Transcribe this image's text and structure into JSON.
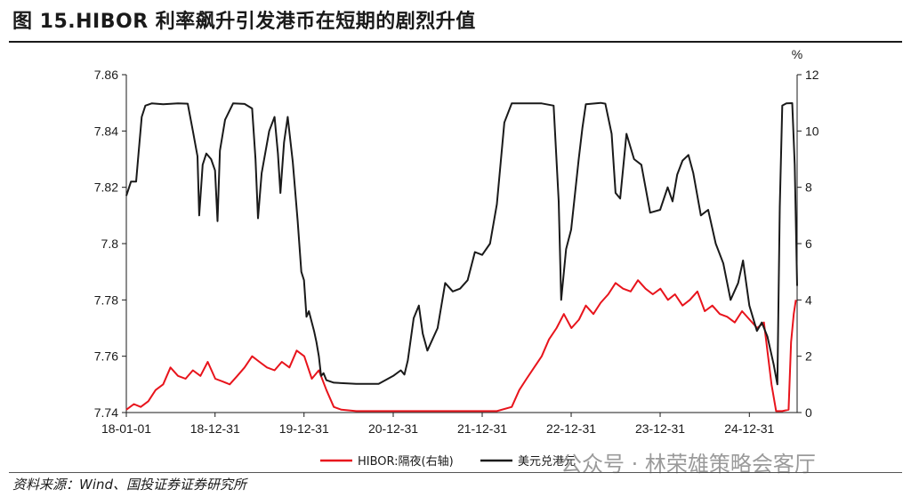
{
  "figure": {
    "title": "图 15.HIBOR 利率飙升引发港币在短期的剧烈升值",
    "source": "资料来源：Wind、国投证券证券研究所",
    "watermark": "公众号 · 林荣雄策略会客厅"
  },
  "colors": {
    "hibor": "#e8141c",
    "usdhkd": "#1a1a1a",
    "axis": "#1a1a1a"
  },
  "chart_data": {
    "type": "line",
    "title": "",
    "x_ticks": [
      "18-01-01",
      "18-12-31",
      "19-12-31",
      "20-12-31",
      "21-12-31",
      "22-12-31",
      "23-12-31",
      "24-12-31"
    ],
    "x_range": [
      "2018-01-01",
      "2025-07-15"
    ],
    "y_left": {
      "label": "",
      "ylim": [
        7.74,
        7.86
      ],
      "ticks": [
        "7.74",
        "7.76",
        "7.78",
        "7.8",
        "7.82",
        "7.84",
        "7.86"
      ]
    },
    "y_right": {
      "label": "%",
      "ylim": [
        0,
        12
      ],
      "ticks": [
        "0",
        "2",
        "4",
        "6",
        "8",
        "10",
        "12"
      ]
    },
    "grid": false,
    "legend": "bottom-center",
    "series": [
      {
        "name": "HIBOR:隔夜(右轴)",
        "axis": "right",
        "color": "#e8141c",
        "points": [
          [
            "2018-01-01",
            0.1
          ],
          [
            "2018-02-01",
            0.3
          ],
          [
            "2018-03-01",
            0.2
          ],
          [
            "2018-04-01",
            0.4
          ],
          [
            "2018-05-01",
            0.8
          ],
          [
            "2018-06-01",
            1.0
          ],
          [
            "2018-07-01",
            1.6
          ],
          [
            "2018-08-01",
            1.3
          ],
          [
            "2018-09-01",
            1.2
          ],
          [
            "2018-10-01",
            1.5
          ],
          [
            "2018-11-01",
            1.3
          ],
          [
            "2018-12-01",
            1.8
          ],
          [
            "2019-01-01",
            1.2
          ],
          [
            "2019-02-01",
            1.1
          ],
          [
            "2019-03-01",
            1.0
          ],
          [
            "2019-04-01",
            1.3
          ],
          [
            "2019-05-01",
            1.6
          ],
          [
            "2019-06-01",
            2.0
          ],
          [
            "2019-07-01",
            1.8
          ],
          [
            "2019-08-01",
            1.6
          ],
          [
            "2019-09-01",
            1.5
          ],
          [
            "2019-10-01",
            1.8
          ],
          [
            "2019-11-01",
            1.6
          ],
          [
            "2019-12-01",
            2.2
          ],
          [
            "2020-01-01",
            2.0
          ],
          [
            "2020-02-01",
            1.2
          ],
          [
            "2020-03-01",
            1.5
          ],
          [
            "2020-04-01",
            0.8
          ],
          [
            "2020-05-01",
            0.2
          ],
          [
            "2020-06-01",
            0.1
          ],
          [
            "2020-08-01",
            0.05
          ],
          [
            "2020-12-01",
            0.05
          ],
          [
            "2021-06-01",
            0.05
          ],
          [
            "2021-12-01",
            0.05
          ],
          [
            "2022-03-01",
            0.05
          ],
          [
            "2022-05-01",
            0.2
          ],
          [
            "2022-06-01",
            0.8
          ],
          [
            "2022-07-01",
            1.2
          ],
          [
            "2022-08-01",
            1.6
          ],
          [
            "2022-09-01",
            2.0
          ],
          [
            "2022-10-01",
            2.6
          ],
          [
            "2022-11-01",
            3.0
          ],
          [
            "2022-12-01",
            3.5
          ],
          [
            "2023-01-01",
            3.0
          ],
          [
            "2023-02-01",
            3.3
          ],
          [
            "2023-03-01",
            3.8
          ],
          [
            "2023-04-01",
            3.5
          ],
          [
            "2023-05-01",
            3.9
          ],
          [
            "2023-06-01",
            4.2
          ],
          [
            "2023-07-01",
            4.6
          ],
          [
            "2023-08-01",
            4.4
          ],
          [
            "2023-09-01",
            4.3
          ],
          [
            "2023-10-01",
            4.7
          ],
          [
            "2023-11-01",
            4.4
          ],
          [
            "2023-12-01",
            4.2
          ],
          [
            "2024-01-01",
            4.4
          ],
          [
            "2024-02-01",
            4.0
          ],
          [
            "2024-03-01",
            4.2
          ],
          [
            "2024-04-01",
            3.8
          ],
          [
            "2024-05-01",
            4.0
          ],
          [
            "2024-06-01",
            4.3
          ],
          [
            "2024-07-01",
            3.6
          ],
          [
            "2024-08-01",
            3.8
          ],
          [
            "2024-09-01",
            3.5
          ],
          [
            "2024-10-01",
            3.4
          ],
          [
            "2024-11-01",
            3.2
          ],
          [
            "2024-12-01",
            3.6
          ],
          [
            "2025-01-01",
            3.3
          ],
          [
            "2025-02-01",
            3.0
          ],
          [
            "2025-03-01",
            3.2
          ],
          [
            "2025-04-01",
            1.0
          ],
          [
            "2025-04-20",
            0.05
          ],
          [
            "2025-05-15",
            0.05
          ],
          [
            "2025-06-10",
            0.1
          ],
          [
            "2025-06-20",
            2.5
          ],
          [
            "2025-07-01",
            3.5
          ],
          [
            "2025-07-10",
            4.0
          ]
        ]
      },
      {
        "name": "美元兑港元",
        "axis": "left",
        "color": "#1a1a1a",
        "points": [
          [
            "2018-01-01",
            7.817
          ],
          [
            "2018-01-20",
            7.822
          ],
          [
            "2018-02-10",
            7.822
          ],
          [
            "2018-02-20",
            7.832
          ],
          [
            "2018-03-05",
            7.845
          ],
          [
            "2018-03-20",
            7.849
          ],
          [
            "2018-04-15",
            7.8498
          ],
          [
            "2018-06-01",
            7.8495
          ],
          [
            "2018-08-01",
            7.8498
          ],
          [
            "2018-09-10",
            7.8497
          ],
          [
            "2018-10-01",
            7.84
          ],
          [
            "2018-10-20",
            7.831
          ],
          [
            "2018-10-27",
            7.81
          ],
          [
            "2018-11-10",
            7.828
          ],
          [
            "2018-11-25",
            7.832
          ],
          [
            "2018-12-15",
            7.83
          ],
          [
            "2018-12-31",
            7.826
          ],
          [
            "2019-01-10",
            7.808
          ],
          [
            "2019-01-20",
            7.833
          ],
          [
            "2019-02-10",
            7.844
          ],
          [
            "2019-03-15",
            7.8498
          ],
          [
            "2019-05-01",
            7.8496
          ],
          [
            "2019-06-01",
            7.848
          ],
          [
            "2019-06-15",
            7.83
          ],
          [
            "2019-06-25",
            7.809
          ],
          [
            "2019-07-10",
            7.825
          ],
          [
            "2019-08-10",
            7.84
          ],
          [
            "2019-09-01",
            7.845
          ],
          [
            "2019-09-15",
            7.832
          ],
          [
            "2019-09-25",
            7.818
          ],
          [
            "2019-10-10",
            7.836
          ],
          [
            "2019-10-25",
            7.845
          ],
          [
            "2019-11-15",
            7.829
          ],
          [
            "2019-12-05",
            7.808
          ],
          [
            "2019-12-20",
            7.79
          ],
          [
            "2019-12-31",
            7.787
          ],
          [
            "2020-01-10",
            7.774
          ],
          [
            "2020-01-20",
            7.776
          ],
          [
            "2020-02-10",
            7.769
          ],
          [
            "2020-02-20",
            7.765
          ],
          [
            "2020-03-01",
            7.76
          ],
          [
            "2020-03-10",
            7.753
          ],
          [
            "2020-03-20",
            7.754
          ],
          [
            "2020-04-01",
            7.7515
          ],
          [
            "2020-05-01",
            7.7506
          ],
          [
            "2020-08-01",
            7.7502
          ],
          [
            "2020-11-01",
            7.7502
          ],
          [
            "2020-12-31",
            7.753
          ],
          [
            "2021-01-31",
            7.755
          ],
          [
            "2021-02-15",
            7.7535
          ],
          [
            "2021-03-01",
            7.7585
          ],
          [
            "2021-03-25",
            7.7735
          ],
          [
            "2021-04-15",
            7.778
          ],
          [
            "2021-05-01",
            7.768
          ],
          [
            "2021-05-20",
            7.762
          ],
          [
            "2021-07-01",
            7.77
          ],
          [
            "2021-08-01",
            7.786
          ],
          [
            "2021-09-01",
            7.783
          ],
          [
            "2021-10-01",
            7.784
          ],
          [
            "2021-11-01",
            7.787
          ],
          [
            "2021-12-01",
            7.797
          ],
          [
            "2021-12-31",
            7.796
          ],
          [
            "2022-02-01",
            7.8
          ],
          [
            "2022-03-01",
            7.814
          ],
          [
            "2022-04-01",
            7.843
          ],
          [
            "2022-05-01",
            7.8498
          ],
          [
            "2022-07-01",
            7.8498
          ],
          [
            "2022-09-01",
            7.8498
          ],
          [
            "2022-10-20",
            7.849
          ],
          [
            "2022-11-10",
            7.815
          ],
          [
            "2022-11-20",
            7.78
          ],
          [
            "2022-12-10",
            7.798
          ],
          [
            "2022-12-31",
            7.805
          ],
          [
            "2023-01-31",
            7.83
          ],
          [
            "2023-02-15",
            7.841
          ],
          [
            "2023-03-01",
            7.8495
          ],
          [
            "2023-05-01",
            7.85
          ],
          [
            "2023-05-20",
            7.8497
          ],
          [
            "2023-06-15",
            7.839
          ],
          [
            "2023-07-01",
            7.818
          ],
          [
            "2023-07-20",
            7.816
          ],
          [
            "2023-08-15",
            7.839
          ],
          [
            "2023-09-15",
            7.83
          ],
          [
            "2023-10-15",
            7.828
          ],
          [
            "2023-11-20",
            7.811
          ],
          [
            "2023-12-31",
            7.812
          ],
          [
            "2024-01-31",
            7.82
          ],
          [
            "2024-02-20",
            7.815
          ],
          [
            "2024-03-10",
            7.8245
          ],
          [
            "2024-04-01",
            7.8295
          ],
          [
            "2024-04-25",
            7.8315
          ],
          [
            "2024-05-15",
            7.825
          ],
          [
            "2024-06-15",
            7.81
          ],
          [
            "2024-07-15",
            7.812
          ],
          [
            "2024-08-15",
            7.8
          ],
          [
            "2024-09-15",
            7.793
          ],
          [
            "2024-10-15",
            7.78
          ],
          [
            "2024-11-15",
            7.786
          ],
          [
            "2024-12-05",
            7.794
          ],
          [
            "2024-12-31",
            7.778
          ],
          [
            "2025-01-31",
            7.769
          ],
          [
            "2025-02-20",
            7.772
          ],
          [
            "2025-03-15",
            7.767
          ],
          [
            "2025-04-10",
            7.757
          ],
          [
            "2025-04-25",
            7.75
          ],
          [
            "2025-05-05",
            7.813
          ],
          [
            "2025-05-15",
            7.849
          ],
          [
            "2025-06-01",
            7.8498
          ],
          [
            "2025-06-25",
            7.8499
          ],
          [
            "2025-07-05",
            7.828
          ],
          [
            "2025-07-15",
            7.785
          ]
        ]
      }
    ]
  }
}
